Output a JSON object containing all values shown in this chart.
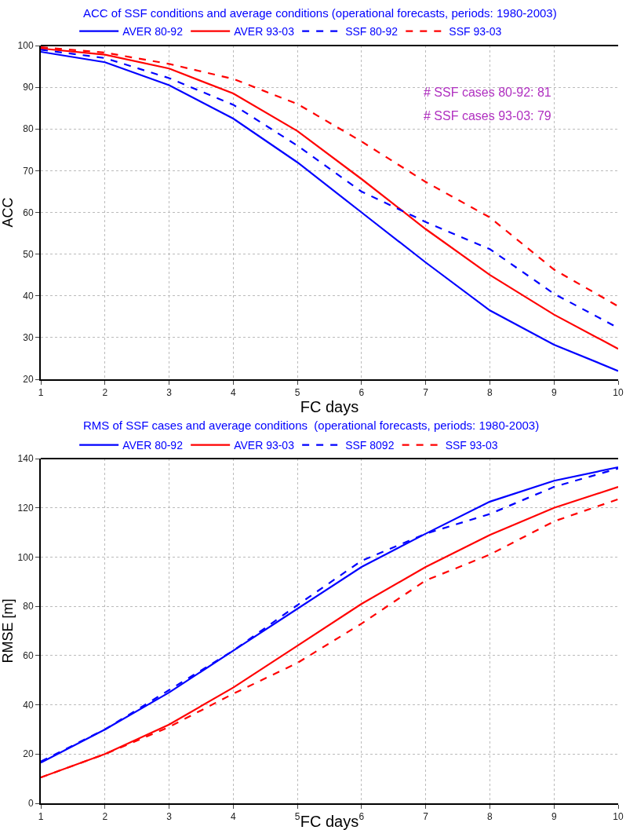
{
  "chart_data": [
    {
      "type": "line",
      "title": "ACC of SSF conditions and average conditions (operational forecasts, periods: 1980-2003)",
      "xlabel": "FC days",
      "ylabel": "ACC",
      "x": [
        1,
        2,
        3,
        4,
        5,
        6,
        7,
        8,
        9,
        10
      ],
      "series": [
        {
          "name": "AVER 80-92",
          "color": "#0000ff",
          "line_style": "solid",
          "values": [
            98.5,
            96,
            90.5,
            82.5,
            72,
            60,
            48,
            36.5,
            28.3,
            22
          ]
        },
        {
          "name": "AVER 93-03",
          "color": "#ff0000",
          "line_style": "solid",
          "values": [
            99.3,
            97.8,
            94.5,
            88.5,
            79.5,
            68,
            56,
            45,
            35.5,
            27.3
          ]
        },
        {
          "name": "SSF 80-92",
          "color": "#0000ff",
          "line_style": "dashed",
          "values": [
            99,
            97,
            92.2,
            85.8,
            76,
            65,
            57.7,
            51.2,
            40.5,
            32.3
          ]
        },
        {
          "name": "SSF 93-03",
          "color": "#ff0000",
          "line_style": "dashed",
          "values": [
            99.6,
            98.3,
            95.6,
            92,
            86,
            77,
            67.3,
            58.8,
            46.3,
            37.5
          ]
        }
      ],
      "xlim": [
        1,
        10
      ],
      "xticks": [
        1,
        2,
        3,
        4,
        5,
        6,
        7,
        8,
        9,
        10
      ],
      "ylim": [
        20,
        100
      ],
      "yticks": [
        20,
        30,
        40,
        50,
        60,
        70,
        80,
        90,
        100
      ],
      "grid": true,
      "legend": "top",
      "marker": "none",
      "annotations": [
        "# SSF cases 80-92: 81",
        "# SSF cases 93-03: 79"
      ]
    },
    {
      "type": "line",
      "title": "RMS of SSF cases and average conditions  (operational forecasts, periods: 1980-2003)",
      "xlabel": "FC days",
      "ylabel": "RMSE [m]",
      "x": [
        1,
        2,
        3,
        4,
        5,
        6,
        7,
        8,
        9,
        10
      ],
      "series": [
        {
          "name": "AVER 80-92",
          "color": "#0000ff",
          "line_style": "solid",
          "values": [
            16.5,
            30,
            45,
            62,
            79,
            96,
            109.5,
            122.5,
            131,
            136.5
          ]
        },
        {
          "name": "AVER 93-03",
          "color": "#ff0000",
          "line_style": "solid",
          "values": [
            10.5,
            20,
            32,
            47,
            64,
            81,
            96,
            109,
            120,
            128.5
          ]
        },
        {
          "name": "SSF 8092",
          "color": "#0000ff",
          "line_style": "dashed",
          "values": [
            17,
            30,
            46,
            62,
            80.5,
            98.5,
            109.5,
            117.5,
            128.5,
            136
          ]
        },
        {
          "name": "SSF 93-03",
          "color": "#ff0000",
          "line_style": "dashed",
          "values": [
            10.5,
            20,
            31,
            44.5,
            57,
            73,
            90.5,
            101,
            114.5,
            123.5
          ]
        }
      ],
      "xlim": [
        1,
        10
      ],
      "xticks": [
        1,
        2,
        3,
        4,
        5,
        6,
        7,
        8,
        9,
        10
      ],
      "ylim": [
        0,
        140
      ],
      "yticks": [
        0,
        20,
        40,
        60,
        80,
        100,
        120,
        140
      ],
      "grid": true,
      "legend": "top",
      "marker": "none"
    }
  ]
}
